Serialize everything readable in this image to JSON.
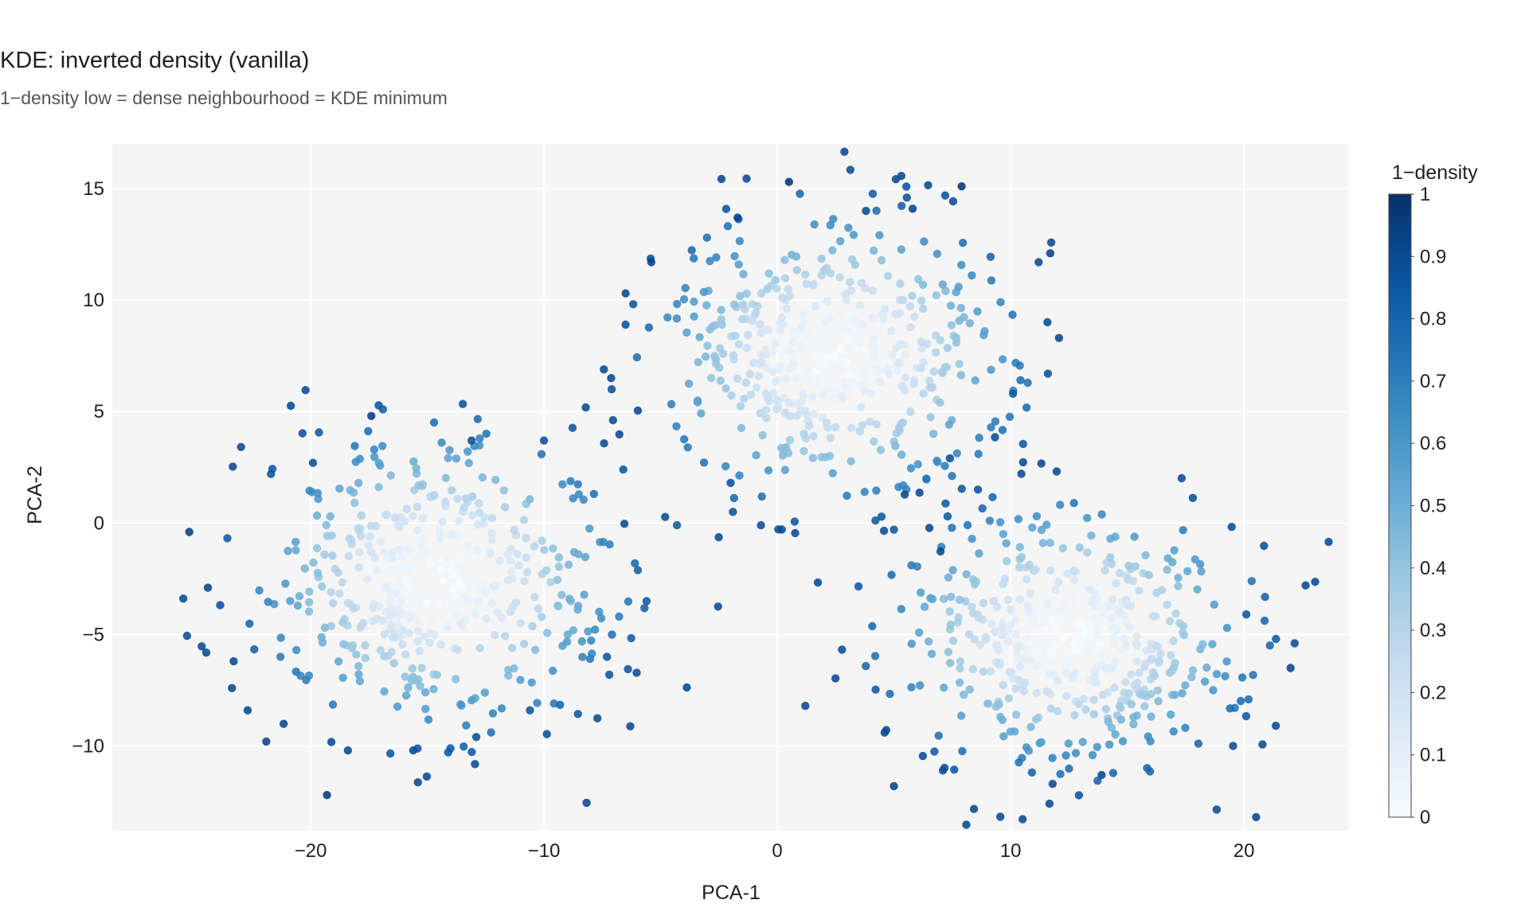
{
  "chart_data": {
    "type": "scatter",
    "title": "KDE: inverted density (vanilla)",
    "subtitle": "1−density low = dense neighbourhood = KDE minimum",
    "xlabel": "PCA-1",
    "ylabel": "PCA-2",
    "xlim": [
      -28.5,
      24.5
    ],
    "ylim": [
      -13.8,
      17.0
    ],
    "x_ticks": [
      -20,
      -10,
      0,
      10,
      20
    ],
    "x_tick_labels": [
      "−20",
      "−10",
      "0",
      "10",
      "20"
    ],
    "y_ticks": [
      -10,
      -5,
      0,
      5,
      10,
      15
    ],
    "y_tick_labels": [
      "−10",
      "−5",
      "0",
      "5",
      "10",
      "15"
    ],
    "grid": true,
    "colorbar": {
      "title": "1−density",
      "range": [
        0,
        1
      ],
      "ticks": [
        0,
        0.1,
        0.2,
        0.3,
        0.4,
        0.5,
        0.6,
        0.7,
        0.8,
        0.9,
        1
      ],
      "tick_labels": [
        "0",
        "0.1",
        "0.2",
        "0.3",
        "0.4",
        "0.5",
        "0.6",
        "0.7",
        "0.8",
        "0.9",
        "1"
      ],
      "colorscale": [
        "#f7fbff",
        "#deebf7",
        "#c6dbef",
        "#9ecae1",
        "#6baed6",
        "#4292c6",
        "#2171b5",
        "#08519c",
        "#08306b"
      ]
    },
    "clusters": [
      {
        "center_x": -14.5,
        "center_y": -2.5,
        "spread_x": 4.0,
        "spread_y": 3.4,
        "n_points": 480
      },
      {
        "center_x": 2.5,
        "center_y": 7.5,
        "spread_x": 4.0,
        "spread_y": 3.3,
        "n_points": 480
      },
      {
        "center_x": 12.5,
        "center_y": -5.0,
        "spread_x": 4.0,
        "spread_y": 3.0,
        "n_points": 480
      }
    ],
    "outliers": [
      {
        "x": -25.2,
        "y": -0.4,
        "v": 0.95
      },
      {
        "x": -24.4,
        "y": -2.9,
        "v": 0.92
      },
      {
        "x": -23.3,
        "y": -6.2,
        "v": 0.9
      },
      {
        "x": -22.7,
        "y": -8.4,
        "v": 0.9
      },
      {
        "x": -21.9,
        "y": -9.8,
        "v": 0.92
      },
      {
        "x": -19.3,
        "y": -12.2,
        "v": 0.97
      },
      {
        "x": -18.4,
        "y": -10.2,
        "v": 0.9
      },
      {
        "x": -17.4,
        "y": 4.8,
        "v": 0.96
      },
      {
        "x": -19.9,
        "y": 2.7,
        "v": 0.88
      },
      {
        "x": -21.7,
        "y": 2.2,
        "v": 0.86
      },
      {
        "x": -15.6,
        "y": -10.2,
        "v": 0.9
      },
      {
        "x": -12.9,
        "y": -9.6,
        "v": 0.88
      },
      {
        "x": -13.1,
        "y": 3.7,
        "v": 0.88
      },
      {
        "x": -10.0,
        "y": 3.7,
        "v": 0.87
      },
      {
        "x": -10.6,
        "y": -8.4,
        "v": 0.86
      },
      {
        "x": -7.1,
        "y": 6.0,
        "v": 0.88
      },
      {
        "x": -6.6,
        "y": 2.4,
        "v": 0.85
      },
      {
        "x": -5.6,
        "y": -3.5,
        "v": 0.84
      },
      {
        "x": -4.3,
        "y": -0.1,
        "v": 0.84
      },
      {
        "x": -7.3,
        "y": -6.0,
        "v": 0.85
      },
      {
        "x": -7.2,
        "y": -6.8,
        "v": 0.86
      },
      {
        "x": -5.4,
        "y": 11.7,
        "v": 0.93
      },
      {
        "x": -6.5,
        "y": 10.3,
        "v": 0.9
      },
      {
        "x": -6.5,
        "y": 8.9,
        "v": 0.88
      },
      {
        "x": -1.7,
        "y": 13.7,
        "v": 0.93
      },
      {
        "x": 0.5,
        "y": 15.3,
        "v": 0.98
      },
      {
        "x": 7.9,
        "y": 15.1,
        "v": 0.97
      },
      {
        "x": 5.8,
        "y": 14.1,
        "v": 0.92
      },
      {
        "x": 3.8,
        "y": 14.0,
        "v": 0.9
      },
      {
        "x": 11.7,
        "y": 12.1,
        "v": 0.93
      },
      {
        "x": 11.2,
        "y": 11.7,
        "v": 0.9
      },
      {
        "x": 11.6,
        "y": 6.7,
        "v": 0.87
      },
      {
        "x": 10.1,
        "y": 5.8,
        "v": 0.86
      },
      {
        "x": -2.0,
        "y": 1.8,
        "v": 0.88
      },
      {
        "x": -1.9,
        "y": 0.5,
        "v": 0.86
      },
      {
        "x": -0.7,
        "y": -0.1,
        "v": 0.88
      },
      {
        "x": 1.2,
        "y": -8.2,
        "v": 0.9
      },
      {
        "x": 4.6,
        "y": -9.4,
        "v": 0.9
      },
      {
        "x": 5.0,
        "y": -11.8,
        "v": 0.92
      },
      {
        "x": 7.1,
        "y": -11.1,
        "v": 0.9
      },
      {
        "x": 11.8,
        "y": -11.7,
        "v": 0.9
      },
      {
        "x": 13.9,
        "y": -11.3,
        "v": 0.9
      },
      {
        "x": 22.0,
        "y": -6.5,
        "v": 0.92
      },
      {
        "x": 20.1,
        "y": -4.1,
        "v": 0.86
      },
      {
        "x": 7.4,
        "y": 2.9,
        "v": 0.88
      },
      {
        "x": 8.6,
        "y": 1.5,
        "v": 0.86
      },
      {
        "x": 5.0,
        "y": -0.3,
        "v": 0.85
      },
      {
        "x": 7.3,
        "y": 0.3,
        "v": 0.84
      }
    ]
  }
}
